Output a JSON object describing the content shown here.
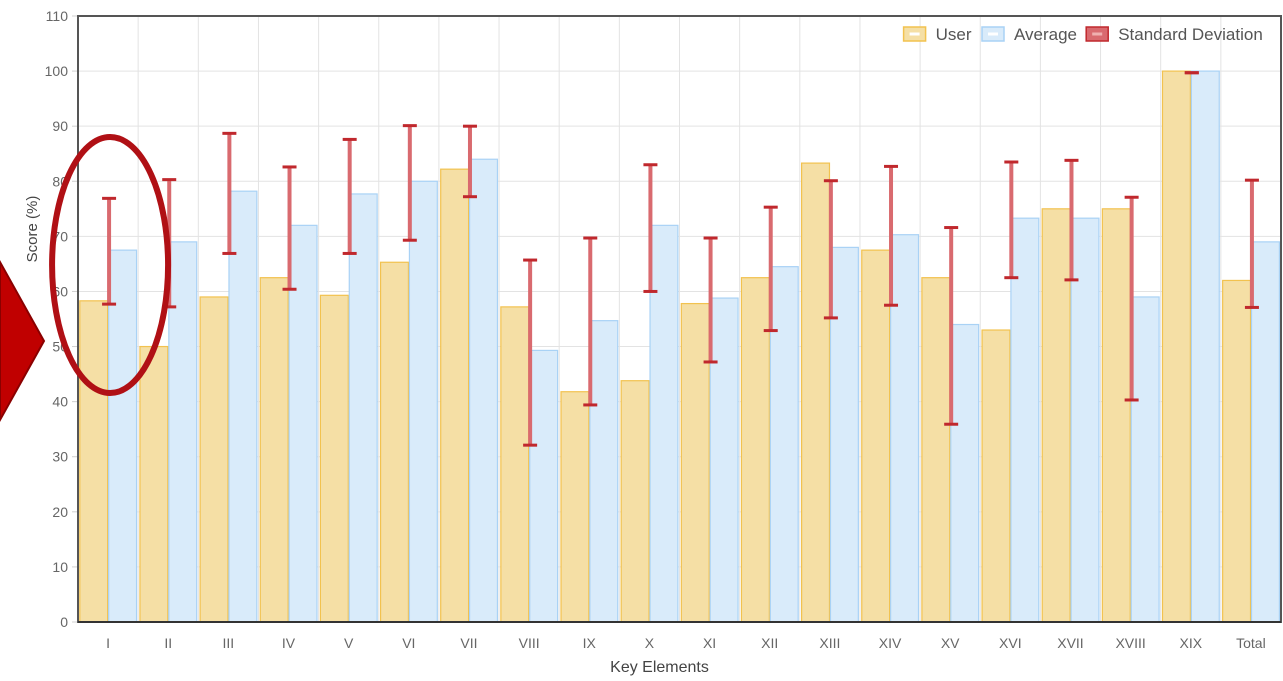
{
  "chart_data": {
    "type": "bar",
    "xlabel": "Key Elements",
    "ylabel": "Score (%)",
    "ylim": [
      0,
      110
    ],
    "yticks": [
      0,
      10,
      20,
      30,
      40,
      50,
      60,
      70,
      80,
      90,
      100,
      110
    ],
    "grid": true,
    "legend_position": "top-right",
    "categories": [
      "I",
      "II",
      "III",
      "IV",
      "V",
      "VI",
      "VII",
      "VIII",
      "IX",
      "X",
      "XI",
      "XII",
      "XIII",
      "XIV",
      "XV",
      "XVI",
      "XVII",
      "XVIII",
      "XIX",
      "Total"
    ],
    "series": [
      {
        "name": "User",
        "color": "#f5dfa5",
        "border": "#f2c24f",
        "values": [
          58.3,
          50.0,
          59.0,
          62.5,
          59.3,
          65.3,
          82.2,
          57.2,
          41.8,
          43.8,
          57.8,
          62.5,
          83.3,
          67.5,
          62.5,
          53.0,
          75.0,
          75.0,
          100.0,
          62.0
        ]
      },
      {
        "name": "Average",
        "color": "#d9ebfa",
        "border": "#a9d2f5",
        "values": [
          67.5,
          69.0,
          78.2,
          72.0,
          77.7,
          80.0,
          84.0,
          49.3,
          54.7,
          72.0,
          58.8,
          64.5,
          68.0,
          70.3,
          54.0,
          73.3,
          73.3,
          59.0,
          100.0,
          69.0
        ]
      }
    ],
    "error_bars": {
      "name": "Standard Deviation",
      "color": "#d96a6f",
      "ranges": [
        [
          57.7,
          76.9
        ],
        [
          57.2,
          80.3
        ],
        [
          66.9,
          88.7
        ],
        [
          60.4,
          82.6
        ],
        [
          66.9,
          87.6
        ],
        [
          69.3,
          90.1
        ],
        [
          77.2,
          90.0
        ],
        [
          32.1,
          65.7
        ],
        [
          39.4,
          69.7
        ],
        [
          60.0,
          83.0
        ],
        [
          47.2,
          69.7
        ],
        [
          52.9,
          75.3
        ],
        [
          55.2,
          80.1
        ],
        [
          57.5,
          82.7
        ],
        [
          35.9,
          71.6
        ],
        [
          62.5,
          83.5
        ],
        [
          62.1,
          83.8
        ],
        [
          40.3,
          77.1
        ],
        [
          99.7,
          99.7
        ],
        [
          57.1,
          80.2
        ]
      ]
    },
    "legend": [
      {
        "name": "User",
        "swatch": "#f5dfa5",
        "swatch_border": "#f2c24f"
      },
      {
        "name": "Average",
        "swatch": "#d9ebfa",
        "swatch_border": "#a9d2f5"
      },
      {
        "name": "Standard Deviation",
        "swatch": "#d96a6f",
        "swatch_border": "#c0282d"
      }
    ]
  },
  "annotations": {
    "highlight_category": "I",
    "circle_color": "#b01015",
    "arrow_color": "#c00000"
  }
}
